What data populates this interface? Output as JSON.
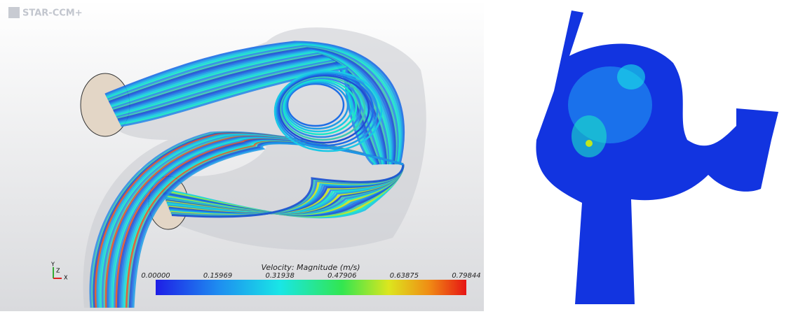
{
  "logo": "STAR-CCM+",
  "colorbar": {
    "title": "Velocity: Magnitude (m/s)",
    "ticks": [
      "0.00000",
      "0.15969",
      "0.31938",
      "0.47906",
      "0.63875",
      "0.79844"
    ]
  },
  "triad": {
    "y": "Y",
    "z": "Z",
    "x": "X"
  }
}
